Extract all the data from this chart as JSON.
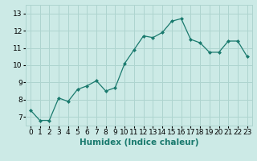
{
  "x": [
    0,
    1,
    2,
    3,
    4,
    5,
    6,
    7,
    8,
    9,
    10,
    11,
    12,
    13,
    14,
    15,
    16,
    17,
    18,
    19,
    20,
    21,
    22,
    23
  ],
  "y": [
    7.4,
    6.8,
    6.8,
    8.1,
    7.9,
    8.6,
    8.8,
    9.1,
    8.5,
    8.7,
    10.1,
    10.9,
    11.7,
    11.6,
    11.9,
    12.55,
    12.7,
    11.5,
    11.3,
    10.75,
    10.75,
    11.4,
    11.4,
    10.5
  ],
  "line_color": "#1a7a6e",
  "marker": "D",
  "marker_size": 2.0,
  "bg_color": "#cceae6",
  "grid_color": "#aed4cf",
  "xlabel": "Humidex (Indice chaleur)",
  "xlabel_fontsize": 7.5,
  "tick_fontsize": 6.5,
  "ylim": [
    6.5,
    13.5
  ],
  "xlim": [
    -0.5,
    23.5
  ],
  "yticks": [
    7,
    8,
    9,
    10,
    11,
    12,
    13
  ],
  "xtick_labels": [
    "0",
    "1",
    "2",
    "3",
    "4",
    "5",
    "6",
    "7",
    "8",
    "9",
    "10",
    "11",
    "12",
    "13",
    "14",
    "15",
    "16",
    "17",
    "18",
    "19",
    "20",
    "21",
    "22",
    "23"
  ]
}
